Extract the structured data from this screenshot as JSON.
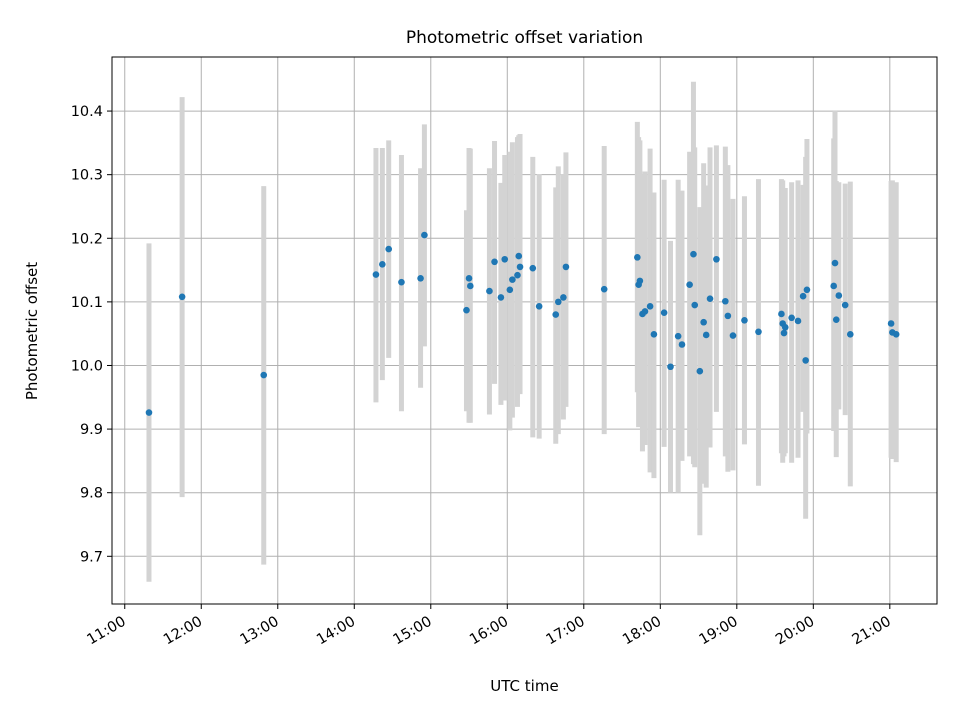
{
  "chart_data": {
    "type": "scatter",
    "title": "Photometric offset variation",
    "xlabel": "UTC time",
    "ylabel": "Photometric offset",
    "xlim": [
      "10:50",
      "21:37"
    ],
    "ylim": [
      9.625,
      10.485
    ],
    "grid": true,
    "x_ticks": [
      "11:00",
      "12:00",
      "13:00",
      "14:00",
      "15:00",
      "16:00",
      "17:00",
      "18:00",
      "19:00",
      "20:00",
      "21:00"
    ],
    "y_ticks": [
      9.7,
      9.8,
      9.9,
      10.0,
      10.1,
      10.2,
      10.3,
      10.4
    ],
    "colors": {
      "point": "#1f77b4",
      "error_bar": "#d3d3d3",
      "grid": "#b0b0b0"
    },
    "series": [
      {
        "x": [
          "11:19",
          "11:45",
          "12:49",
          "14:17",
          "14:22",
          "14:27",
          "14:37",
          "14:52",
          "14:55",
          "15:28",
          "15:30",
          "15:31",
          "15:46",
          "15:50",
          "15:55",
          "15:58",
          "16:02",
          "16:04",
          "16:08",
          "16:09",
          "16:10",
          "16:20",
          "16:25",
          "16:38",
          "16:40",
          "16:44",
          "16:46",
          "17:16",
          "17:42",
          "17:43",
          "17:44",
          "17:46",
          "17:48",
          "17:52",
          "17:55",
          "18:03",
          "18:08",
          "18:14",
          "18:17",
          "18:23",
          "18:26",
          "18:27",
          "18:31",
          "18:34",
          "18:36",
          "18:39",
          "18:44",
          "18:51",
          "18:53",
          "18:57",
          "19:06",
          "19:17",
          "19:35",
          "19:36",
          "19:37",
          "19:38",
          "19:43",
          "19:48",
          "19:52",
          "19:54",
          "19:55",
          "20:16",
          "20:17",
          "20:18",
          "20:20",
          "20:25",
          "20:29",
          "21:01",
          "21:02",
          "21:05"
        ],
        "y": [
          9.926,
          10.108,
          9.985,
          10.143,
          10.159,
          10.183,
          10.131,
          10.137,
          10.205,
          10.087,
          10.137,
          10.125,
          10.117,
          10.163,
          10.107,
          10.167,
          10.119,
          10.135,
          10.142,
          10.172,
          10.155,
          10.153,
          10.093,
          10.08,
          10.1,
          10.107,
          10.155,
          10.12,
          10.17,
          10.127,
          10.133,
          10.081,
          10.085,
          10.093,
          10.049,
          10.083,
          9.998,
          10.046,
          10.033,
          10.127,
          10.175,
          10.095,
          9.991,
          10.068,
          10.048,
          10.105,
          10.167,
          10.101,
          10.078,
          10.047,
          10.071,
          10.053,
          10.081,
          10.066,
          10.051,
          10.06,
          10.075,
          10.07,
          10.109,
          10.008,
          10.119,
          10.125,
          10.161,
          10.072,
          10.11,
          10.095,
          10.049,
          10.066,
          10.052,
          10.049
        ],
        "yerr_low": [
          9.66,
          9.793,
          9.687,
          9.942,
          9.977,
          10.012,
          9.928,
          9.965,
          10.03,
          9.928,
          9.91,
          9.91,
          9.923,
          9.971,
          9.938,
          9.945,
          9.898,
          9.918,
          9.935,
          9.962,
          9.955,
          9.887,
          9.885,
          9.877,
          9.892,
          9.915,
          9.935,
          9.892,
          9.958,
          9.903,
          9.925,
          9.865,
          9.875,
          9.832,
          9.823,
          9.872,
          9.8,
          9.8,
          9.85,
          9.857,
          9.845,
          9.84,
          9.733,
          9.814,
          9.808,
          9.871,
          9.927,
          9.857,
          9.833,
          9.835,
          9.876,
          9.811,
          9.862,
          9.847,
          9.857,
          9.862,
          9.847,
          9.855,
          9.927,
          9.759,
          9.893,
          9.897,
          9.92,
          9.856,
          9.931,
          9.922,
          9.81,
          9.855,
          9.853,
          9.848
        ],
        "yerr_high": [
          10.192,
          10.422,
          10.282,
          10.342,
          10.342,
          10.354,
          10.331,
          10.31,
          10.379,
          10.244,
          10.342,
          10.341,
          10.31,
          10.353,
          10.287,
          10.331,
          10.336,
          10.351,
          10.359,
          10.362,
          10.364,
          10.328,
          10.301,
          10.28,
          10.313,
          10.301,
          10.335,
          10.345,
          10.383,
          10.359,
          10.354,
          10.3,
          10.305,
          10.341,
          10.272,
          10.292,
          10.196,
          10.292,
          10.275,
          10.336,
          10.446,
          10.343,
          10.249,
          10.318,
          10.283,
          10.343,
          10.346,
          10.344,
          10.315,
          10.262,
          10.266,
          10.293,
          10.293,
          10.291,
          10.25,
          10.279,
          10.288,
          10.291,
          10.284,
          10.328,
          10.356,
          10.357,
          10.401,
          10.29,
          10.288,
          10.286,
          10.289,
          10.29,
          10.291,
          10.288
        ]
      }
    ]
  }
}
